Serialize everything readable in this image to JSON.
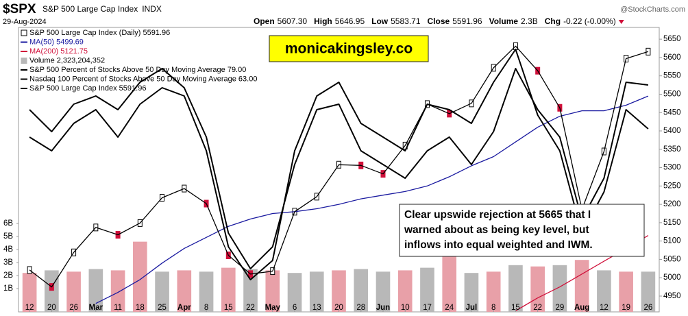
{
  "chart_data": {
    "type": "line",
    "title": "$SPX",
    "subtitle": "S&P 500 Large Cap Index",
    "exchange": "INDX",
    "date": "29-Aug-2024",
    "source": "@StockCharts.com",
    "quote": [
      {
        "label": "Open",
        "value": "5607.30"
      },
      {
        "label": "High",
        "value": "5646.95"
      },
      {
        "label": "Low",
        "value": "5583.71"
      },
      {
        "label": "Close",
        "value": "5591.96"
      },
      {
        "label": "Volume",
        "value": "2.3B"
      },
      {
        "label": "Chg",
        "value": "-0.22 (-0.00%)"
      }
    ],
    "categories": [
      "12",
      "20",
      "26",
      "Mar",
      "11",
      "18",
      "25",
      "Apr",
      "8",
      "15",
      "22",
      "May",
      "6",
      "13",
      "20",
      "28",
      "Jun",
      "10",
      "17",
      "24",
      "Jul",
      "8",
      "15",
      "22",
      "29",
      "Aug",
      "12",
      "19",
      "26"
    ],
    "months": [
      "Mar",
      "Apr",
      "May",
      "Jun",
      "Jul",
      "Aug"
    ],
    "ylim": [
      4935,
      5682
    ],
    "yticks": [
      4950,
      5000,
      5050,
      5100,
      5150,
      5200,
      5250,
      5300,
      5350,
      5400,
      5450,
      5500,
      5550,
      5600,
      5650
    ],
    "y2lim": [
      0,
      100
    ],
    "vlim": [
      0,
      7000000000
    ],
    "vticks": [
      {
        "value": 1000000000,
        "label": "1B"
      },
      {
        "value": 2000000000,
        "label": "2B"
      },
      {
        "value": 3000000000,
        "label": "3B"
      },
      {
        "value": 4000000000,
        "label": "4B"
      },
      {
        "value": 5000000000,
        "label": "5B"
      },
      {
        "value": 6000000000,
        "label": "6B"
      }
    ],
    "grid": false,
    "down_color": "#d0103a",
    "series": [
      {
        "name": "S&P 500 Large Cap Index (Daily) 5591.96",
        "style": "candle",
        "color": "#000000",
        "values": [
          5021,
          4975,
          5069,
          5137,
          5117,
          5149,
          5218,
          5243,
          5202,
          5061,
          5010,
          5018,
          5180,
          5221,
          5308,
          5306,
          5283,
          5360,
          5473,
          5447,
          5475,
          5572,
          5631,
          5564,
          5463,
          5186,
          5344,
          5597,
          5616
        ]
      },
      {
        "name": "MA(50) 5499.69",
        "style": "line",
        "color": "#1a1aa0",
        "width": 1.3,
        "values": [
          null,
          null,
          null,
          4930,
          4960,
          4995,
          5040,
          5080,
          5110,
          5140,
          5160,
          5175,
          5180,
          5188,
          5200,
          5215,
          5225,
          5235,
          5250,
          5275,
          5305,
          5330,
          5370,
          5410,
          5440,
          5455,
          5455,
          5470,
          5495
        ]
      },
      {
        "name": "MA(200) 5121.75",
        "style": "line",
        "color": "#d0103a",
        "width": 1.3,
        "values": [
          null,
          null,
          null,
          null,
          null,
          null,
          null,
          null,
          null,
          null,
          null,
          null,
          null,
          null,
          null,
          null,
          null,
          null,
          null,
          null,
          null,
          null,
          4910,
          4945,
          4975,
          5010,
          5045,
          5080,
          5115
        ]
      },
      {
        "name": "Volume 2,323,204,352",
        "style": "bar",
        "axis": "v",
        "color": "#b8b8b8",
        "colors": [
          "#e8a0a8",
          "#b8b8b8",
          "#e8a0a8",
          "#b8b8b8",
          "#e8a0a8",
          "#e8a0a8",
          "#b8b8b8",
          "#e8a0a8",
          "#b8b8b8",
          "#e8a0a8",
          "#b8b8b8",
          "#e8a0a8",
          "#b8b8b8",
          "#b8b8b8",
          "#e8a0a8",
          "#b8b8b8",
          "#b8b8b8",
          "#e8a0a8",
          "#b8b8b8",
          "#e8a0a8",
          "#b8b8b8",
          "#e8a0a8",
          "#b8b8b8",
          "#e8a0a8",
          "#b8b8b8",
          "#e8a0a8",
          "#b8b8b8",
          "#e8a0a8",
          "#b8b8b8"
        ],
        "values": [
          2200000000,
          2400000000,
          2300000000,
          2500000000,
          2400000000,
          4600000000,
          2300000000,
          2400000000,
          2300000000,
          2600000000,
          2500000000,
          2400000000,
          2200000000,
          2300000000,
          2400000000,
          2500000000,
          2300000000,
          2400000000,
          2600000000,
          3600000000,
          2200000000,
          2300000000,
          2800000000,
          2700000000,
          2800000000,
          3200000000,
          2400000000,
          2300000000,
          2300000000
        ]
      },
      {
        "name": "S&P 500 Percent of Stocks Above 50 Day Moving Average 79.00",
        "style": "line",
        "axis": "y2",
        "color": "#000000",
        "width": 2,
        "values": [
          70,
          62,
          72,
          75,
          70,
          80,
          85,
          78,
          60,
          25,
          12,
          20,
          50,
          70,
          72,
          55,
          50,
          45,
          55,
          60,
          50,
          62,
          85,
          70,
          60,
          30,
          45,
          80,
          79
        ]
      },
      {
        "name": "Nasdaq 100 Percent of Stocks Above 50 Day Moving Average 63.00",
        "style": "line",
        "axis": "y2",
        "color": "#000000",
        "width": 2,
        "values": [
          60,
          55,
          65,
          70,
          60,
          72,
          78,
          75,
          55,
          20,
          8,
          15,
          55,
          75,
          80,
          65,
          60,
          55,
          72,
          70,
          65,
          80,
          92,
          68,
          55,
          25,
          40,
          70,
          63
        ]
      },
      {
        "name": "S&P 500 Large Cap Index 5591.96",
        "style": "line",
        "color": "#000000",
        "width": 1.3,
        "values": [
          5021,
          4975,
          5069,
          5137,
          5117,
          5149,
          5218,
          5243,
          5202,
          5061,
          5010,
          5018,
          5180,
          5221,
          5308,
          5306,
          5283,
          5360,
          5473,
          5447,
          5475,
          5572,
          5631,
          5564,
          5463,
          5186,
          5344,
          5597,
          5616
        ]
      }
    ],
    "brand": "monicakingsley.co",
    "note": [
      "Clear upswide rejection at 5665 that I",
      "warned about as being key level, but",
      "inflows into equal weighted and IWM."
    ]
  }
}
